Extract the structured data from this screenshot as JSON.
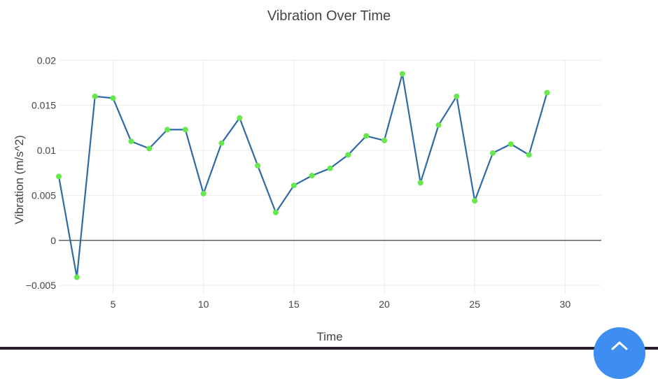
{
  "chart_data": {
    "type": "line",
    "title": "Vibration Over Time",
    "xlabel": "Time",
    "ylabel": "Vibration (m/s^2)",
    "xlim": [
      2,
      32
    ],
    "ylim": [
      -0.006,
      0.0201
    ],
    "x_ticks": [
      5,
      10,
      15,
      20,
      25,
      30
    ],
    "x_tick_labels": [
      "5",
      "10",
      "15",
      "20",
      "25",
      "30"
    ],
    "y_ticks": [
      -0.005,
      0,
      0.005,
      0.01,
      0.015,
      0.02
    ],
    "y_tick_labels": [
      "−0.005",
      "0",
      "0.005",
      "0.01",
      "0.015",
      "0.02"
    ],
    "grid": true,
    "legend": "none",
    "line_color": "#2f6aa6",
    "marker_color": "#66e84a",
    "series": [
      {
        "x": [
          2,
          3,
          4,
          5,
          6,
          7,
          8,
          9,
          10,
          11,
          12,
          13,
          14,
          15,
          16,
          17,
          18,
          19,
          20,
          21,
          22,
          23,
          24,
          25,
          26,
          27,
          28,
          29
        ],
        "values": [
          0.0071,
          -0.0041,
          0.016,
          0.0158,
          0.011,
          0.0102,
          0.0123,
          0.0123,
          0.0052,
          0.0108,
          0.0136,
          0.0083,
          0.0031,
          0.0061,
          0.0072,
          0.008,
          0.0095,
          0.0116,
          0.0111,
          0.0185,
          0.0064,
          0.0128,
          0.016,
          0.0044,
          0.0097,
          0.0107,
          0.0095,
          0.0164
        ]
      }
    ]
  },
  "fab": {
    "color": "#3d8ef0",
    "icon": "chevron-up-icon"
  }
}
